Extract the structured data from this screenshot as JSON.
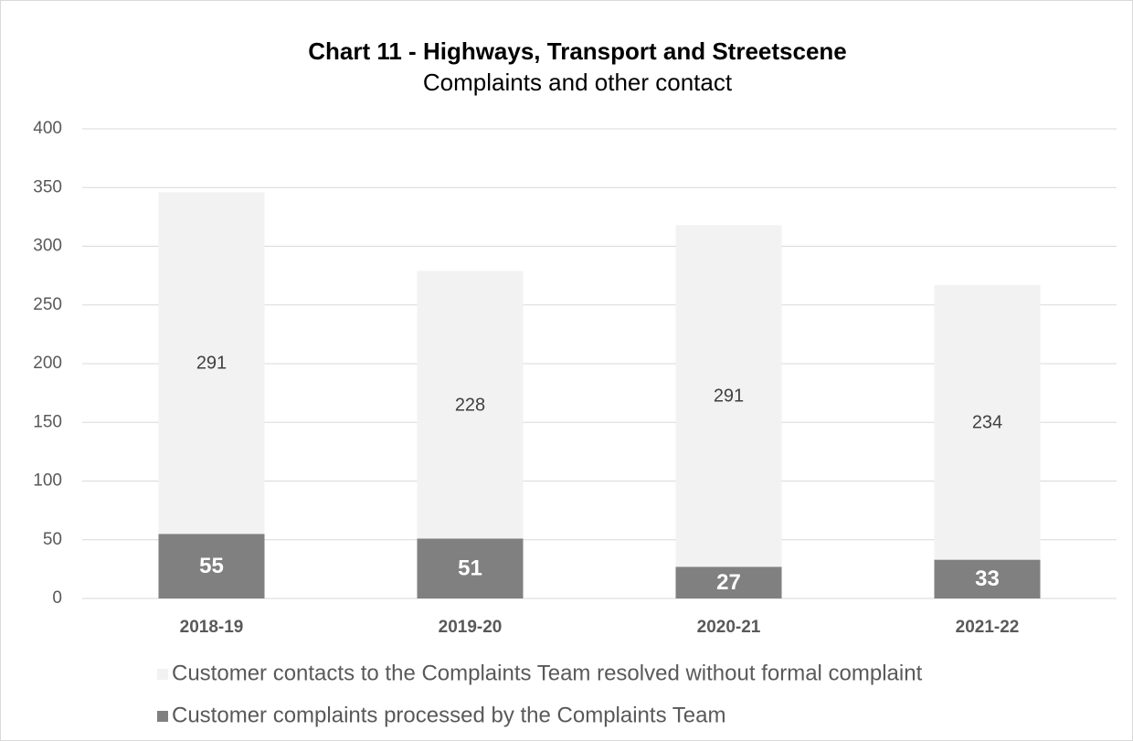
{
  "chart_data": {
    "type": "stacked_bar",
    "title": "Chart 11 - Highways, Transport and Streetscene",
    "subtitle": "Complaints and other contact",
    "categories": [
      "2018-19",
      "2019-20",
      "2020-21",
      "2021-22"
    ],
    "series": [
      {
        "name": "Customer complaints processed by the Complaints Team",
        "color": "#808080",
        "values": [
          55,
          51,
          27,
          33
        ]
      },
      {
        "name": "Customer contacts to the Complaints Team resolved without formal complaint",
        "color": "#f2f2f2",
        "values": [
          291,
          228,
          291,
          234
        ]
      }
    ],
    "ylim": [
      0,
      400
    ],
    "yticks": [
      0,
      50,
      100,
      150,
      200,
      250,
      300,
      350,
      400
    ],
    "grid": true
  }
}
